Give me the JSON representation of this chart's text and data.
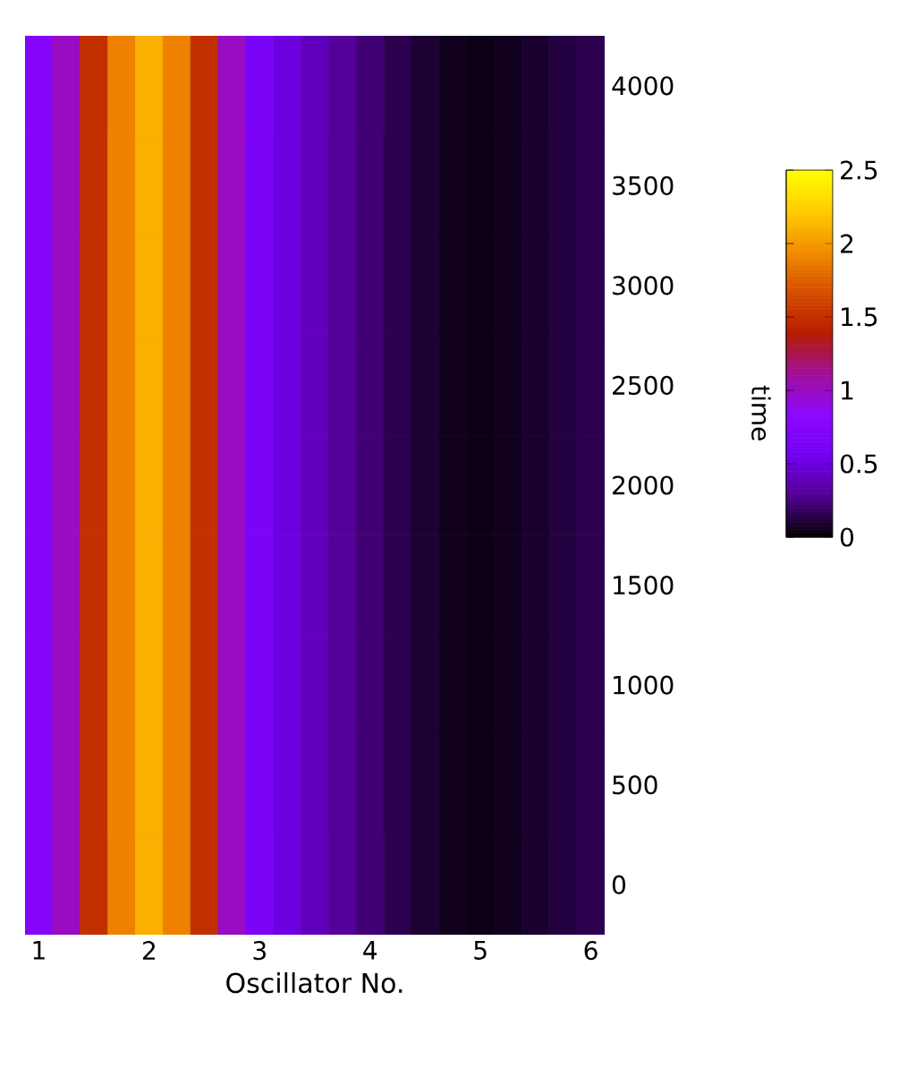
{
  "chart_data": {
    "type": "heatmap",
    "xlabel": "Oscillator No.",
    "ylabel": "time",
    "categories": [
      "1",
      null,
      null,
      null,
      "2",
      null,
      null,
      null,
      "3",
      null,
      null,
      null,
      "4",
      null,
      null,
      null,
      "5",
      null,
      null,
      null,
      "6"
    ],
    "y_categories": [
      "4000",
      "3500",
      "3000",
      "2500",
      "2000",
      "1500",
      "1000",
      "500",
      "0"
    ],
    "cells": [
      [
        0.75,
        1.0,
        1.5,
        1.9,
        2.1,
        1.9,
        1.5,
        1.0,
        0.65,
        0.5,
        0.4,
        0.3,
        0.22,
        0.15,
        0.1,
        0.06,
        0.04,
        0.06,
        0.09,
        0.12,
        0.15
      ],
      [
        0.75,
        1.0,
        1.5,
        1.9,
        2.1,
        1.9,
        1.5,
        1.0,
        0.65,
        0.5,
        0.4,
        0.3,
        0.22,
        0.15,
        0.1,
        0.06,
        0.04,
        0.06,
        0.09,
        0.12,
        0.15
      ],
      [
        0.75,
        1.0,
        1.5,
        1.9,
        2.1,
        1.9,
        1.5,
        1.0,
        0.65,
        0.5,
        0.4,
        0.3,
        0.22,
        0.15,
        0.1,
        0.06,
        0.04,
        0.06,
        0.09,
        0.12,
        0.15
      ],
      [
        0.75,
        1.0,
        1.5,
        1.9,
        2.1,
        1.9,
        1.5,
        1.0,
        0.65,
        0.5,
        0.4,
        0.3,
        0.22,
        0.15,
        0.1,
        0.06,
        0.04,
        0.06,
        0.09,
        0.12,
        0.15
      ],
      [
        0.75,
        1.0,
        1.5,
        1.9,
        2.1,
        1.9,
        1.5,
        1.0,
        0.65,
        0.5,
        0.4,
        0.3,
        0.22,
        0.15,
        0.1,
        0.06,
        0.04,
        0.06,
        0.09,
        0.12,
        0.15
      ],
      [
        0.75,
        1.0,
        1.5,
        1.9,
        2.1,
        1.9,
        1.5,
        1.0,
        0.65,
        0.5,
        0.4,
        0.3,
        0.22,
        0.15,
        0.1,
        0.06,
        0.04,
        0.06,
        0.09,
        0.12,
        0.15
      ],
      [
        0.75,
        1.0,
        1.5,
        1.9,
        2.1,
        1.9,
        1.5,
        1.0,
        0.65,
        0.5,
        0.4,
        0.3,
        0.22,
        0.15,
        0.1,
        0.06,
        0.04,
        0.06,
        0.09,
        0.12,
        0.15
      ],
      [
        0.75,
        1.0,
        1.5,
        1.9,
        2.1,
        1.9,
        1.5,
        1.0,
        0.65,
        0.5,
        0.4,
        0.3,
        0.22,
        0.15,
        0.1,
        0.06,
        0.04,
        0.06,
        0.09,
        0.12,
        0.15
      ],
      [
        0.75,
        1.0,
        1.5,
        1.9,
        2.1,
        1.9,
        1.5,
        1.0,
        0.65,
        0.5,
        0.4,
        0.3,
        0.22,
        0.15,
        0.1,
        0.06,
        0.04,
        0.06,
        0.09,
        0.12,
        0.15
      ]
    ],
    "clim": [
      0,
      2.5
    ],
    "cticks": [
      0,
      0.5,
      1,
      1.5,
      2,
      2.5
    ]
  }
}
